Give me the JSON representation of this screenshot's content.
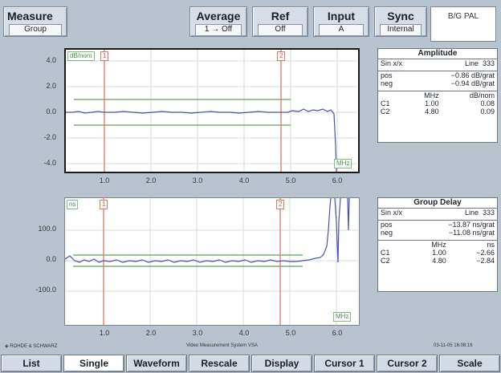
{
  "header": {
    "measure": {
      "title": "Measure",
      "value": "Group"
    },
    "average": {
      "title": "Average",
      "value": "1  → Off"
    },
    "ref": {
      "title": "Ref",
      "value": "Off"
    },
    "input": {
      "title": "Input",
      "value": "A"
    },
    "sync": {
      "title": "Sync",
      "value": "Internal"
    },
    "standard": "B/G PAL"
  },
  "amplitude_plot": {
    "unit": "dB/nom",
    "x_unit": "MHz",
    "y_ticks": [
      "4.0",
      "2.0",
      "0.0",
      "-2.0",
      "-4.0"
    ],
    "x_ticks": [
      "1.0",
      "2.0",
      "3.0",
      "4.0",
      "5.0",
      "6.0"
    ],
    "cursor1_label": "1",
    "cursor2_label": "2"
  },
  "group_delay_plot": {
    "unit": "ns",
    "x_unit": "MHz",
    "y_ticks": [
      "100.0",
      "0.0",
      "-100.0"
    ],
    "x_ticks": [
      "1.0",
      "2.0",
      "3.0",
      "4.0",
      "5.0",
      "6.0"
    ],
    "cursor1_label": "1",
    "cursor2_label": "2"
  },
  "amplitude_info": {
    "title": "Amplitude",
    "mode": "Sin x/x",
    "line_label": "Line",
    "line": "333",
    "pos_label": "pos",
    "pos": "−0.86 dB/grat",
    "neg_label": "neg",
    "neg": "−0.94 dB/grat",
    "col_mhz": "MHz",
    "col_unit": "dB/nom",
    "c1": {
      "label": "C1",
      "mhz": "1.00",
      "val": "0.08"
    },
    "c2": {
      "label": "C2",
      "mhz": "4.80",
      "val": "0.09"
    }
  },
  "group_delay_info": {
    "title": "Group Delay",
    "mode": "Sin x/x",
    "line_label": "Line",
    "line": "333",
    "pos_label": "pos",
    "pos": "−13.87 ns/grat",
    "neg_label": "neg",
    "neg": "−11.08 ns/grat",
    "col_mhz": "MHz",
    "col_unit": "ns",
    "c1": {
      "label": "C1",
      "mhz": "1.00",
      "val": "−2.66"
    },
    "c2": {
      "label": "C2",
      "mhz": "4.80",
      "val": "−2.84"
    }
  },
  "footer": {
    "brand": "ROHDE & SCHWARZ",
    "system": "Video Measurement System VSA",
    "timestamp": "03-11-05 16:08:16"
  },
  "softkeys": [
    "List",
    "Single",
    "Waveform",
    "Rescale",
    "Display",
    "Cursor 1",
    "Cursor 2",
    "Scale"
  ],
  "selected_softkey": "Single",
  "colors": {
    "trace": "#4a4fb4",
    "cursor": "#e0765c",
    "tolerance": "#5aa25a",
    "grid": "#d4dcd0"
  }
}
